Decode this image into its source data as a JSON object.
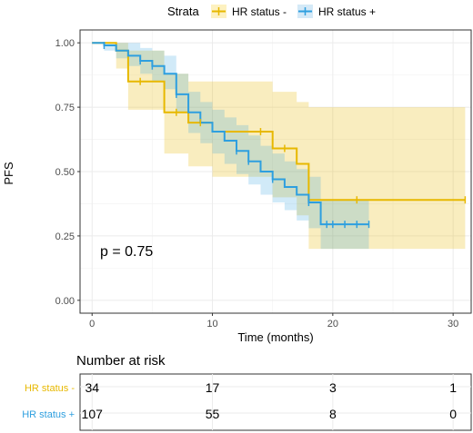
{
  "colors": {
    "hr_neg": "#E7B800",
    "hr_pos": "#2E9FDF",
    "grid": "#ebebeb",
    "panel_border": "#333333"
  },
  "chart_data": {
    "type": "line",
    "subtype": "kaplan-meier",
    "xlabel": "Time (months)",
    "ylabel": "PFS",
    "xlim": [
      0,
      31.5
    ],
    "ylim": [
      0,
      1
    ],
    "x_ticks": [
      0,
      10,
      20,
      30
    ],
    "y_ticks": [
      0.0,
      0.25,
      0.5,
      0.75,
      1.0
    ],
    "x_tick_labels": [
      "0",
      "10",
      "20",
      "30"
    ],
    "y_tick_labels": [
      "0.00",
      "0.25",
      "0.50",
      "0.75",
      "1.00"
    ],
    "grid": true,
    "legend": {
      "title": "Strata",
      "placement": "top"
    },
    "annotation": "p = 0.75",
    "series": [
      {
        "name": "HR status -",
        "color": "#E7B800",
        "steps": [
          [
            0,
            1.0
          ],
          [
            2,
            0.97
          ],
          [
            3,
            0.85
          ],
          [
            6,
            0.73
          ],
          [
            8,
            0.69
          ],
          [
            10,
            0.655
          ],
          [
            15,
            0.59
          ],
          [
            17,
            0.53
          ],
          [
            18,
            0.39
          ],
          [
            31,
            0.39
          ]
        ],
        "ci_upper": [
          [
            0,
            1.0
          ],
          [
            2,
            1.0
          ],
          [
            3,
            0.97
          ],
          [
            6,
            0.88
          ],
          [
            8,
            0.85
          ],
          [
            10,
            0.85
          ],
          [
            15,
            0.81
          ],
          [
            17,
            0.77
          ],
          [
            18,
            0.75
          ],
          [
            31,
            0.75
          ]
        ],
        "ci_lower": [
          [
            0,
            1.0
          ],
          [
            2,
            0.9
          ],
          [
            3,
            0.74
          ],
          [
            6,
            0.57
          ],
          [
            8,
            0.52
          ],
          [
            10,
            0.48
          ],
          [
            15,
            0.4
          ],
          [
            17,
            0.33
          ],
          [
            18,
            0.2
          ],
          [
            31,
            0.2
          ]
        ],
        "censor": [
          [
            4,
            0.85
          ],
          [
            7,
            0.73
          ],
          [
            9,
            0.69
          ],
          [
            14,
            0.655
          ],
          [
            16,
            0.59
          ],
          [
            22,
            0.39
          ],
          [
            31,
            0.39
          ]
        ]
      },
      {
        "name": "HR status +",
        "color": "#2E9FDF",
        "steps": [
          [
            0,
            1.0
          ],
          [
            1,
            0.99
          ],
          [
            2,
            0.97
          ],
          [
            3,
            0.95
          ],
          [
            4,
            0.93
          ],
          [
            5,
            0.91
          ],
          [
            6,
            0.88
          ],
          [
            7,
            0.8
          ],
          [
            8,
            0.73
          ],
          [
            9,
            0.69
          ],
          [
            10,
            0.655
          ],
          [
            11,
            0.62
          ],
          [
            12,
            0.58
          ],
          [
            13,
            0.54
          ],
          [
            14,
            0.5
          ],
          [
            15,
            0.47
          ],
          [
            16,
            0.44
          ],
          [
            17,
            0.41
          ],
          [
            18,
            0.38
          ],
          [
            19,
            0.295
          ],
          [
            23,
            0.295
          ]
        ],
        "ci_upper": [
          [
            0,
            1.0
          ],
          [
            1,
            1.0
          ],
          [
            2,
            1.0
          ],
          [
            3,
            1.0
          ],
          [
            4,
            0.98
          ],
          [
            5,
            0.97
          ],
          [
            6,
            0.95
          ],
          [
            7,
            0.88
          ],
          [
            8,
            0.81
          ],
          [
            9,
            0.77
          ],
          [
            10,
            0.74
          ],
          [
            11,
            0.71
          ],
          [
            12,
            0.68
          ],
          [
            13,
            0.64
          ],
          [
            14,
            0.6
          ],
          [
            15,
            0.57
          ],
          [
            16,
            0.54
          ],
          [
            17,
            0.51
          ],
          [
            18,
            0.48
          ],
          [
            19,
            0.39
          ],
          [
            23,
            0.39
          ]
        ],
        "ci_lower": [
          [
            0,
            1.0
          ],
          [
            1,
            0.97
          ],
          [
            2,
            0.94
          ],
          [
            3,
            0.91
          ],
          [
            4,
            0.88
          ],
          [
            5,
            0.85
          ],
          [
            6,
            0.82
          ],
          [
            7,
            0.73
          ],
          [
            8,
            0.65
          ],
          [
            9,
            0.61
          ],
          [
            10,
            0.57
          ],
          [
            11,
            0.53
          ],
          [
            12,
            0.49
          ],
          [
            13,
            0.45
          ],
          [
            14,
            0.41
          ],
          [
            15,
            0.38
          ],
          [
            16,
            0.35
          ],
          [
            17,
            0.31
          ],
          [
            18,
            0.28
          ],
          [
            19,
            0.2
          ],
          [
            23,
            0.2
          ]
        ],
        "censor": [
          [
            1,
            0.99
          ],
          [
            4,
            0.93
          ],
          [
            5,
            0.91
          ],
          [
            7,
            0.8
          ],
          [
            12,
            0.58
          ],
          [
            13,
            0.54
          ],
          [
            15,
            0.47
          ],
          [
            18,
            0.38
          ],
          [
            19.5,
            0.295
          ],
          [
            20,
            0.295
          ],
          [
            21,
            0.295
          ],
          [
            22,
            0.295
          ],
          [
            23,
            0.295
          ]
        ]
      }
    ],
    "risk_table": {
      "title": "Number at risk",
      "times": [
        0,
        10,
        20,
        30
      ],
      "rows": [
        {
          "name": "HR status -",
          "color": "#E7B800",
          "values": [
            "34",
            "17",
            "3",
            "1"
          ]
        },
        {
          "name": "HR status +",
          "color": "#2E9FDF",
          "values": [
            "107",
            "55",
            "8",
            "0"
          ]
        }
      ]
    }
  }
}
